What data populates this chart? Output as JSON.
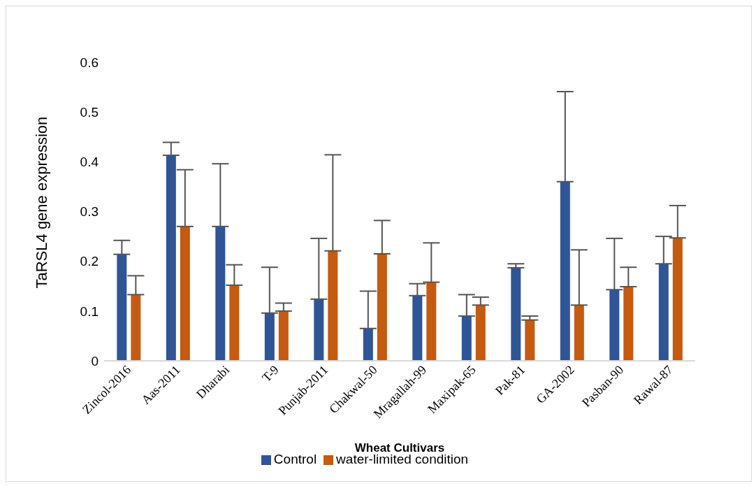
{
  "chart_data": {
    "type": "bar",
    "xlabel": "Wheat Cultivars",
    "ylabel": "TaRSL4 gene expression",
    "categories": [
      "Zincol-2016",
      "Aas-2011",
      "Dharabi",
      "T-9",
      "Punjab-2011",
      "Chakwal-50",
      "Mragallah-99",
      "Maxipak-65",
      "Pak-81",
      "GA-2002",
      "Pasban-90",
      "Rawal-87"
    ],
    "series": [
      {
        "name": "Control",
        "color": "#2f5597",
        "values": [
          0.214,
          0.413,
          0.27,
          0.096,
          0.124,
          0.065,
          0.131,
          0.09,
          0.187,
          0.36,
          0.143,
          0.195
        ],
        "errors": [
          [
            0.214,
            0.242
          ],
          [
            0.413,
            0.439
          ],
          [
            0.27,
            0.396
          ],
          [
            0.096,
            0.188
          ],
          [
            0.124,
            0.246
          ],
          [
            0.065,
            0.14
          ],
          [
            0.131,
            0.155
          ],
          [
            0.09,
            0.133
          ],
          [
            0.187,
            0.195
          ],
          [
            0.36,
            0.541
          ],
          [
            0.143,
            0.246
          ],
          [
            0.195,
            0.25
          ]
        ]
      },
      {
        "name": "water-limited condition",
        "color": "#c55a11",
        "values": [
          0.133,
          0.27,
          0.152,
          0.1,
          0.221,
          0.215,
          0.158,
          0.112,
          0.082,
          0.112,
          0.149,
          0.247
        ],
        "errors": [
          [
            0.133,
            0.171
          ],
          [
            0.27,
            0.384
          ],
          [
            0.152,
            0.193
          ],
          [
            0.1,
            0.116
          ],
          [
            0.221,
            0.414
          ],
          [
            0.215,
            0.282
          ],
          [
            0.158,
            0.237
          ],
          [
            0.112,
            0.128
          ],
          [
            0.082,
            0.09
          ],
          [
            0.112,
            0.223
          ],
          [
            0.149,
            0.188
          ],
          [
            0.247,
            0.312
          ]
        ]
      }
    ],
    "ylim": [
      0,
      0.6
    ],
    "yticks": [
      0,
      0.1,
      0.2,
      0.3,
      0.4,
      0.5,
      0.6
    ],
    "grid": false,
    "legend": "bottom"
  }
}
